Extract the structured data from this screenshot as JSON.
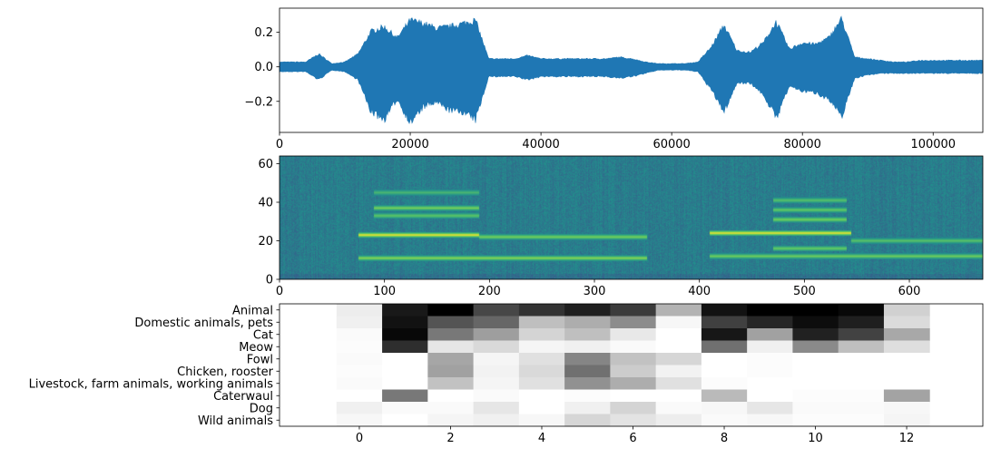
{
  "chart_data": [
    {
      "type": "area",
      "title": "",
      "xlabel": "",
      "ylabel": "",
      "xlim": [
        0,
        107600
      ],
      "ylim": [
        -0.38,
        0.34
      ],
      "xticks": [
        0,
        20000,
        40000,
        60000,
        80000,
        100000
      ],
      "yticks": [
        -0.2,
        0.0,
        0.2
      ],
      "ytick_labels": [
        "−0.2",
        "0.0",
        "0.2"
      ],
      "color": "#1f77b4",
      "x": [
        0,
        2000,
        4000,
        6000,
        8000,
        10000,
        12000,
        14000,
        16000,
        18000,
        20000,
        22000,
        24000,
        26000,
        28000,
        30000,
        32000,
        34000,
        36000,
        38000,
        40000,
        42000,
        44000,
        46000,
        48000,
        50000,
        52000,
        54000,
        56000,
        58000,
        60000,
        62000,
        64000,
        66000,
        68000,
        70000,
        72000,
        74000,
        76000,
        78000,
        80000,
        82000,
        84000,
        86000,
        88000,
        90000,
        92000,
        94000,
        96000,
        98000,
        100000,
        102000,
        104000,
        106000,
        107600
      ],
      "upper": [
        0.03,
        0.03,
        0.03,
        0.08,
        0.02,
        0.03,
        0.08,
        0.22,
        0.25,
        0.18,
        0.29,
        0.27,
        0.24,
        0.25,
        0.27,
        0.29,
        0.05,
        0.05,
        0.05,
        0.07,
        0.05,
        0.05,
        0.05,
        0.05,
        0.05,
        0.05,
        0.06,
        0.05,
        0.03,
        0.02,
        0.02,
        0.02,
        0.03,
        0.12,
        0.26,
        0.1,
        0.09,
        0.15,
        0.28,
        0.11,
        0.15,
        0.14,
        0.18,
        0.3,
        0.06,
        0.05,
        0.04,
        0.03,
        0.03,
        0.04,
        0.04,
        0.04,
        0.04,
        0.04,
        0.04
      ],
      "lower": [
        -0.03,
        -0.03,
        -0.03,
        -0.08,
        -0.02,
        -0.03,
        -0.08,
        -0.28,
        -0.33,
        -0.2,
        -0.35,
        -0.25,
        -0.22,
        -0.27,
        -0.28,
        -0.33,
        -0.06,
        -0.06,
        -0.06,
        -0.08,
        -0.06,
        -0.06,
        -0.06,
        -0.06,
        -0.06,
        -0.06,
        -0.07,
        -0.06,
        -0.04,
        -0.02,
        -0.02,
        -0.02,
        -0.03,
        -0.14,
        -0.28,
        -0.1,
        -0.1,
        -0.17,
        -0.32,
        -0.12,
        -0.15,
        -0.16,
        -0.2,
        -0.31,
        -0.07,
        -0.05,
        -0.04,
        -0.04,
        -0.04,
        -0.04,
        -0.04,
        -0.04,
        -0.04,
        -0.04,
        -0.04
      ]
    },
    {
      "type": "heatmap",
      "title": "",
      "xlabel": "",
      "ylabel": "",
      "colormap": "viridis",
      "xlim": [
        0,
        670
      ],
      "ylim": [
        0,
        64
      ],
      "xticks": [
        0,
        100,
        200,
        300,
        400,
        500,
        600
      ],
      "yticks": [
        0,
        20,
        40,
        60
      ],
      "harmonic_tracks": [
        {
          "x": [
            75,
            190
          ],
          "y": 23,
          "strength": 1.0
        },
        {
          "x": [
            190,
            350
          ],
          "y": 22,
          "strength": 0.65
        },
        {
          "x": [
            75,
            350
          ],
          "y": 11,
          "strength": 0.7
        },
        {
          "x": [
            90,
            190
          ],
          "y": 33,
          "strength": 0.55
        },
        {
          "x": [
            90,
            190
          ],
          "y": 37,
          "strength": 0.65
        },
        {
          "x": [
            90,
            190
          ],
          "y": 45,
          "strength": 0.4
        },
        {
          "x": [
            410,
            545
          ],
          "y": 24,
          "strength": 1.0
        },
        {
          "x": [
            545,
            670
          ],
          "y": 20,
          "strength": 0.5
        },
        {
          "x": [
            410,
            670
          ],
          "y": 12,
          "strength": 0.6
        },
        {
          "x": [
            470,
            540
          ],
          "y": 16,
          "strength": 0.6
        },
        {
          "x": [
            470,
            540
          ],
          "y": 31,
          "strength": 0.65
        },
        {
          "x": [
            470,
            540
          ],
          "y": 36,
          "strength": 0.55
        },
        {
          "x": [
            470,
            540
          ],
          "y": 41,
          "strength": 0.5
        }
      ]
    },
    {
      "type": "heatmap",
      "title": "",
      "xlabel": "",
      "ylabel": "",
      "colormap": "gray_r",
      "xlim": [
        -1.75,
        13.67
      ],
      "xticks": [
        0,
        2,
        4,
        6,
        8,
        10,
        12
      ],
      "categories": [
        "Animal",
        "Domestic animals, pets",
        "Cat",
        "Meow",
        "Fowl",
        "Chicken, rooster",
        "Livestock, farm animals, working animals",
        "Caterwaul",
        "Dog",
        "Wild animals"
      ],
      "values": [
        [
          0.07,
          0.9,
          1.0,
          0.72,
          0.8,
          0.88,
          0.77,
          0.3,
          0.93,
          1.0,
          1.0,
          0.97,
          0.18
        ],
        [
          0.06,
          0.93,
          0.67,
          0.6,
          0.25,
          0.32,
          0.45,
          0.03,
          0.75,
          0.85,
          0.95,
          0.88,
          0.14
        ],
        [
          0.02,
          0.97,
          0.53,
          0.38,
          0.17,
          0.25,
          0.09,
          0.0,
          0.91,
          0.37,
          0.87,
          0.74,
          0.34
        ],
        [
          0.01,
          0.82,
          0.1,
          0.15,
          0.04,
          0.06,
          0.02,
          0.0,
          0.56,
          0.06,
          0.46,
          0.25,
          0.13
        ],
        [
          0.02,
          0.0,
          0.35,
          0.04,
          0.12,
          0.48,
          0.24,
          0.16,
          0.0,
          0.01,
          0.0,
          0.0,
          0.0
        ],
        [
          0.01,
          0.0,
          0.37,
          0.05,
          0.15,
          0.56,
          0.2,
          0.05,
          0.0,
          0.01,
          0.0,
          0.0,
          0.0
        ],
        [
          0.02,
          0.0,
          0.24,
          0.04,
          0.12,
          0.43,
          0.32,
          0.12,
          0.01,
          0.0,
          0.0,
          0.0,
          0.0
        ],
        [
          0.0,
          0.53,
          0.0,
          0.02,
          0.0,
          0.01,
          0.0,
          0.0,
          0.27,
          0.0,
          0.01,
          0.01,
          0.36
        ],
        [
          0.06,
          0.02,
          0.02,
          0.1,
          0.0,
          0.06,
          0.17,
          0.02,
          0.03,
          0.1,
          0.02,
          0.02,
          0.03
        ],
        [
          0.03,
          0.0,
          0.04,
          0.06,
          0.03,
          0.16,
          0.11,
          0.07,
          0.02,
          0.03,
          0.01,
          0.01,
          0.04
        ]
      ]
    }
  ]
}
